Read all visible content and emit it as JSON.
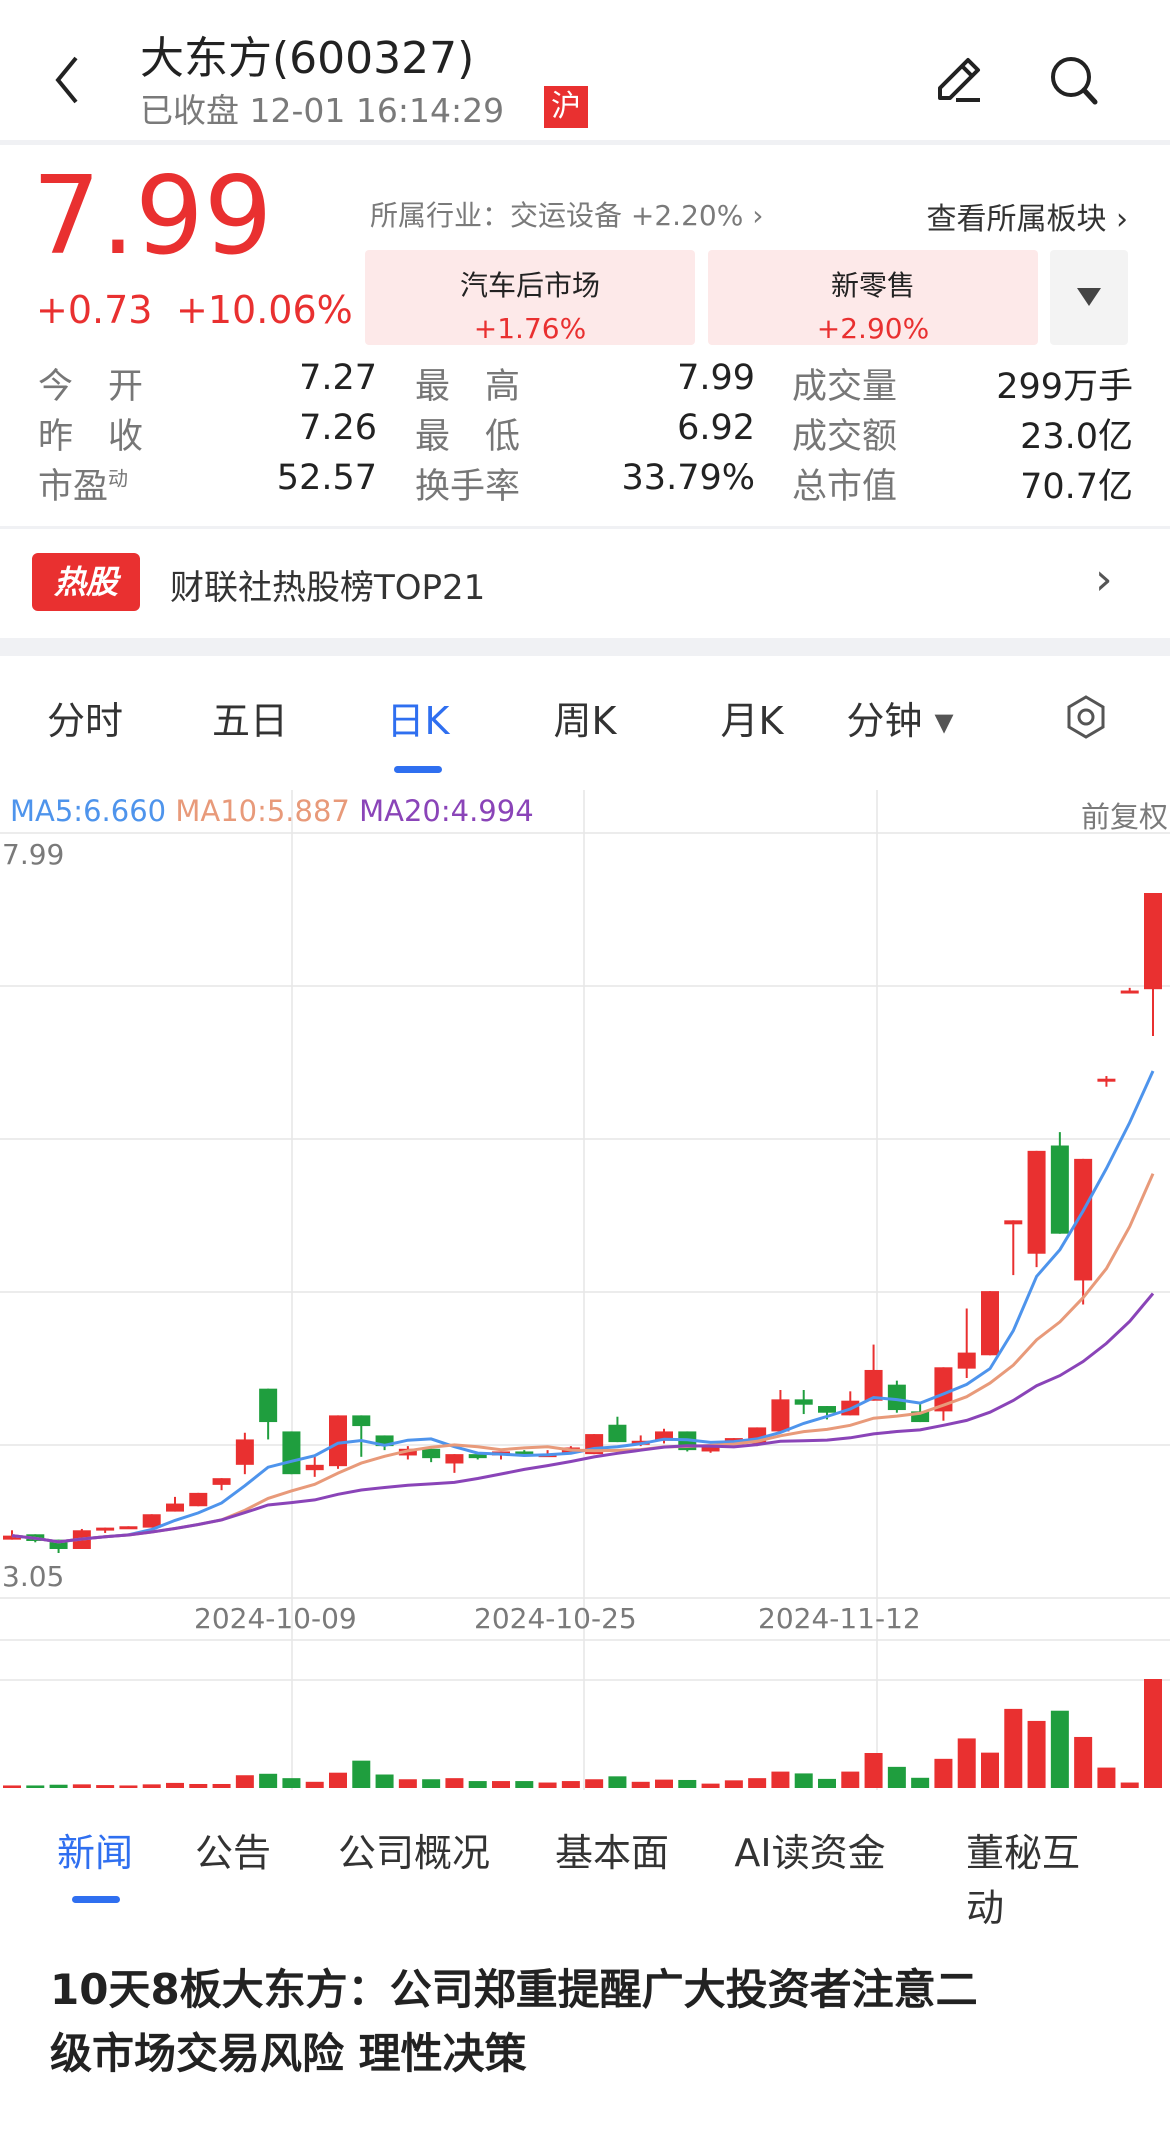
{
  "header": {
    "title": "大东方(600327)",
    "status": "已收盘 12-01 16:14:29",
    "market_badge": "沪",
    "icons": [
      "chevron-left-icon",
      "edit-icon",
      "search-icon"
    ]
  },
  "quote": {
    "price": "7.99",
    "change": "+0.73",
    "change_pct": "+10.06%",
    "industry": "所属行业：交运设备 +2.20%",
    "view_sectors": "查看所属板块",
    "sectors": [
      {
        "name": "汽车后市场",
        "pct": "+1.76%"
      },
      {
        "name": "新零售",
        "pct": "+2.90%"
      }
    ]
  },
  "stats": [
    [
      {
        "label": "今　开",
        "value": "7.27",
        "color": "red"
      },
      {
        "label": "最　高",
        "value": "7.99",
        "color": "red"
      },
      {
        "label": "成交量",
        "value": "299万手",
        "color": ""
      }
    ],
    [
      {
        "label": "昨　收",
        "value": "7.26",
        "color": ""
      },
      {
        "label": "最　低",
        "value": "6.92",
        "color": "green"
      },
      {
        "label": "成交额",
        "value": "23.0亿",
        "color": ""
      }
    ],
    [
      {
        "label": "市盈",
        "sup": "动",
        "value": "52.57",
        "color": ""
      },
      {
        "label": "换手率",
        "value": "33.79%",
        "color": ""
      },
      {
        "label": "总市值",
        "value": "70.7亿",
        "color": ""
      }
    ]
  ],
  "hot": {
    "badge": "热股",
    "text": "财联社热股榜TOP21"
  },
  "period_tabs": [
    "分时",
    "五日",
    "日K",
    "周K",
    "月K",
    "分钟"
  ],
  "period_active": 2,
  "chart_data": {
    "type": "candlestick",
    "ma_legend": [
      {
        "label": "MA5:6.660",
        "color": "#4e94ec"
      },
      {
        "label": "MA10:5.887",
        "color": "#e89a7a"
      },
      {
        "label": "MA20:4.994",
        "color": "#8a44b8"
      }
    ],
    "adjust": "前复权",
    "y_max_label": "7.99",
    "y_min_label": "3.05",
    "ylim": [
      3.05,
      7.99
    ],
    "x_tick_labels": [
      "2024-10-09",
      "2024-10-25",
      "2024-11-12"
    ],
    "colors": {
      "up": "#e93030",
      "down": "#1f9e3e"
    },
    "ohlc": [
      [
        3.15,
        3.22,
        3.15,
        3.18
      ],
      [
        3.19,
        3.19,
        3.13,
        3.14
      ],
      [
        3.15,
        3.15,
        3.05,
        3.08
      ],
      [
        3.08,
        3.23,
        3.08,
        3.22
      ],
      [
        3.22,
        3.24,
        3.2,
        3.24
      ],
      [
        3.23,
        3.25,
        3.23,
        3.25
      ],
      [
        3.24,
        3.34,
        3.24,
        3.34
      ],
      [
        3.36,
        3.47,
        3.36,
        3.42
      ],
      [
        3.4,
        3.5,
        3.4,
        3.5
      ],
      [
        3.56,
        3.61,
        3.52,
        3.61
      ],
      [
        3.71,
        3.95,
        3.64,
        3.9
      ],
      [
        4.28,
        4.28,
        3.9,
        4.03
      ],
      [
        3.96,
        3.96,
        3.64,
        3.64
      ],
      [
        3.67,
        3.77,
        3.62,
        3.71
      ],
      [
        3.7,
        4.08,
        3.68,
        4.08
      ],
      [
        4.08,
        4.08,
        3.77,
        4.0
      ],
      [
        3.93,
        3.93,
        3.82,
        3.85
      ],
      [
        3.78,
        3.85,
        3.75,
        3.83
      ],
      [
        3.83,
        3.83,
        3.73,
        3.76
      ],
      [
        3.72,
        3.79,
        3.65,
        3.79
      ],
      [
        3.79,
        3.79,
        3.75,
        3.76
      ],
      [
        3.78,
        3.81,
        3.75,
        3.81
      ],
      [
        3.81,
        3.82,
        3.77,
        3.78
      ],
      [
        3.77,
        3.82,
        3.77,
        3.79
      ],
      [
        3.8,
        3.85,
        3.8,
        3.84
      ],
      [
        3.79,
        3.94,
        3.79,
        3.94
      ],
      [
        4.01,
        4.07,
        3.88,
        3.88
      ],
      [
        3.86,
        3.93,
        3.85,
        3.89
      ],
      [
        3.89,
        3.98,
        3.87,
        3.96
      ],
      [
        3.96,
        3.96,
        3.81,
        3.82
      ],
      [
        3.81,
        3.84,
        3.8,
        3.84
      ],
      [
        3.88,
        3.91,
        3.88,
        3.91
      ],
      [
        3.87,
        3.99,
        3.85,
        3.99
      ],
      [
        3.96,
        4.27,
        3.96,
        4.2
      ],
      [
        4.2,
        4.27,
        4.09,
        4.16
      ],
      [
        4.15,
        4.15,
        4.05,
        4.1
      ],
      [
        4.08,
        4.26,
        4.08,
        4.19
      ],
      [
        4.19,
        4.61,
        4.19,
        4.42
      ],
      [
        4.31,
        4.34,
        4.1,
        4.12
      ],
      [
        4.11,
        4.18,
        4.03,
        4.03
      ],
      [
        4.11,
        4.44,
        4.04,
        4.44
      ],
      [
        4.43,
        4.88,
        4.36,
        4.55
      ],
      [
        4.53,
        5.01,
        4.53,
        5.01
      ],
      [
        5.51,
        5.54,
        5.13,
        5.54
      ],
      [
        5.29,
        6.06,
        5.19,
        6.06
      ],
      [
        6.1,
        6.2,
        5.44,
        5.44
      ],
      [
        5.09,
        6.0,
        4.91,
        6.0
      ],
      [
        6.59,
        6.62,
        6.54,
        6.6
      ],
      [
        7.25,
        7.28,
        7.25,
        7.26
      ],
      [
        7.27,
        7.99,
        6.92,
        7.99
      ]
    ],
    "volume": [
      7,
      7,
      9,
      10,
      8,
      7,
      10,
      14,
      11,
      11,
      35,
      39,
      27,
      17,
      42,
      75,
      37,
      24,
      24,
      27,
      19,
      19,
      19,
      15,
      19,
      24,
      32,
      17,
      23,
      22,
      12,
      21,
      27,
      45,
      40,
      25,
      45,
      96,
      58,
      28,
      80,
      136,
      97,
      217,
      184,
      212,
      140,
      56,
      15,
      299
    ],
    "volume_unit": "万手"
  },
  "news_tabs": [
    "新闻",
    "公告",
    "公司概况",
    "基本面",
    "AI读资金",
    "董秘互动"
  ],
  "news_active": 0,
  "news": [
    {
      "title_line1": "10天8板大东方：公司郑重提醒广大投资者注意二",
      "title_line2": "级市场交易风险 理性决策"
    }
  ]
}
